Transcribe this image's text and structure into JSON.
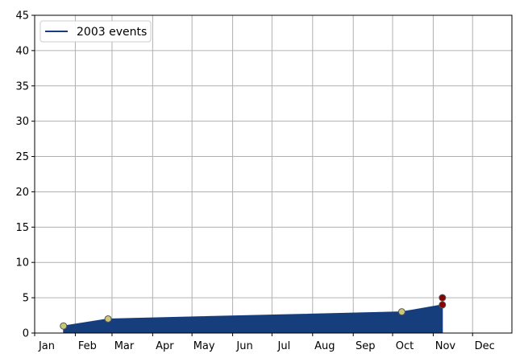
{
  "chart_data": {
    "type": "area",
    "title": "",
    "xlabel": "",
    "ylabel": "",
    "x_axis": {
      "type": "date",
      "range": [
        "2003-01-01",
        "2003-12-31"
      ],
      "ticks": [
        {
          "date": "2003-01-01",
          "label": "Jan"
        },
        {
          "date": "2003-02-01",
          "label": "Feb"
        },
        {
          "date": "2003-03-01",
          "label": "Mar"
        },
        {
          "date": "2003-04-01",
          "label": "Apr"
        },
        {
          "date": "2003-05-01",
          "label": "May"
        },
        {
          "date": "2003-06-01",
          "label": "Jun"
        },
        {
          "date": "2003-07-01",
          "label": "Jul"
        },
        {
          "date": "2003-08-01",
          "label": "Aug"
        },
        {
          "date": "2003-09-01",
          "label": "Sep"
        },
        {
          "date": "2003-10-01",
          "label": "Oct"
        },
        {
          "date": "2003-11-01",
          "label": "Nov"
        },
        {
          "date": "2003-12-01",
          "label": "Dec"
        }
      ]
    },
    "y_axis": {
      "range": [
        0,
        45
      ],
      "ticks": [
        0,
        5,
        10,
        15,
        20,
        25,
        30,
        35,
        40,
        45
      ]
    },
    "grid": true,
    "legend": {
      "placement": "top-left"
    },
    "series": [
      {
        "name": "2003 events",
        "color": "#163d7c",
        "points": [
          {
            "date": "2003-01-23",
            "value": 1
          },
          {
            "date": "2003-02-26",
            "value": 2
          },
          {
            "date": "2003-10-08",
            "value": 3
          },
          {
            "date": "2003-11-08",
            "value": 4
          }
        ]
      }
    ],
    "markers": [
      {
        "date": "2003-01-23",
        "value": 1,
        "color": "#c8c878"
      },
      {
        "date": "2003-02-26",
        "value": 2,
        "color": "#c8c878"
      },
      {
        "date": "2003-10-08",
        "value": 3,
        "color": "#c8c878"
      },
      {
        "date": "2003-11-08",
        "value": 4,
        "color": "#8b0000"
      },
      {
        "date": "2003-11-08",
        "value": 5,
        "color": "#8b0000"
      }
    ],
    "colors": {
      "fill": "#163d7c",
      "grid": "#b0b0b0",
      "axis": "#000000",
      "marker_edge": "#555555"
    }
  }
}
